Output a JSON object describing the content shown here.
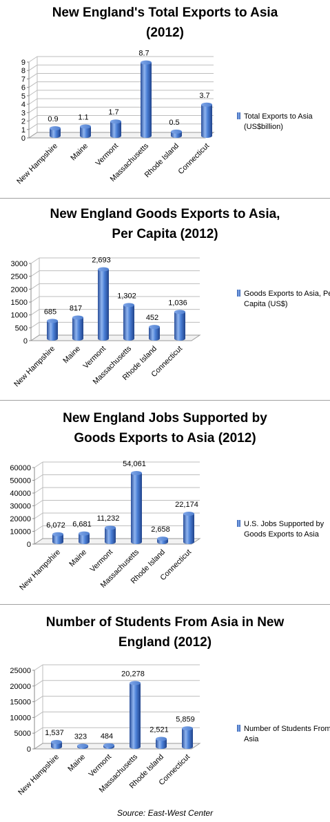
{
  "source": "Source: East-West Center",
  "chart_data": [
    {
      "type": "bar",
      "title_lines": [
        "New England's Total Exports to Asia",
        "(2012)"
      ],
      "categories": [
        "New Hampshire",
        "Maine",
        "Vermont",
        "Massachusetts",
        "Rhode Island",
        "Connecticut"
      ],
      "values": [
        0.9,
        1.1,
        1.7,
        8.7,
        0.5,
        3.7
      ],
      "value_labels": [
        "0.9",
        "1.1",
        "1.7",
        "8.7",
        "0.5",
        "3.7"
      ],
      "yticks": [
        "0",
        "1",
        "2",
        "3",
        "4",
        "5",
        "6",
        "7",
        "8",
        "9"
      ],
      "ylim": [
        0,
        9
      ],
      "legend_lines": [
        "Total Exports to Asia",
        "(US$billion)"
      ],
      "legend_position": "right",
      "grid": true
    },
    {
      "type": "bar",
      "title_lines": [
        "New England Goods Exports to Asia,",
        "Per Capita (2012)"
      ],
      "categories": [
        "New Hampshire",
        "Maine",
        "Vermont",
        "Massachusetts",
        "Rhode Island",
        "Connecticut"
      ],
      "values": [
        685,
        817,
        2693,
        1302,
        452,
        1036
      ],
      "value_labels": [
        "685",
        "817",
        "2,693",
        "1,302",
        "452",
        "1,036"
      ],
      "yticks": [
        "0",
        "500",
        "1000",
        "1500",
        "2000",
        "2500",
        "3000"
      ],
      "ylim": [
        0,
        3000
      ],
      "legend_lines": [
        "Goods Exports to Asia, Per",
        "Capita (US$)"
      ],
      "legend_position": "right",
      "grid": true
    },
    {
      "type": "bar",
      "title_lines": [
        "New England Jobs Supported by",
        "Goods Exports to Asia (2012)"
      ],
      "categories": [
        "New Hampshire",
        "Maine",
        "Vermont",
        "Massachusetts",
        "Rhode Island",
        "Connecticut"
      ],
      "values": [
        6072,
        6681,
        11232,
        54061,
        2658,
        22174
      ],
      "value_labels": [
        "6,072",
        "6,681",
        "11,232",
        "54,061",
        "2,658",
        "22,174"
      ],
      "yticks": [
        "0",
        "10000",
        "20000",
        "30000",
        "40000",
        "50000",
        "60000"
      ],
      "ylim": [
        0,
        60000
      ],
      "legend_lines": [
        "U.S. Jobs Supported by",
        "Goods Exports to Asia"
      ],
      "legend_position": "right",
      "grid": true
    },
    {
      "type": "bar",
      "title_lines": [
        "Number of Students From Asia in New",
        "England (2012)"
      ],
      "categories": [
        "New Hampshire",
        "Maine",
        "Vermont",
        "Massachusetts",
        "Rhode Island",
        "Connecticut"
      ],
      "values": [
        1537,
        323,
        484,
        20278,
        2521,
        5859
      ],
      "value_labels": [
        "1,537",
        "323",
        "484",
        "20,278",
        "2,521",
        "5,859"
      ],
      "yticks": [
        "0",
        "5000",
        "10000",
        "15000",
        "20000",
        "25000"
      ],
      "ylim": [
        0,
        25000
      ],
      "legend_lines": [
        "Number of Students From",
        "Asia"
      ],
      "legend_position": "right",
      "grid": true
    }
  ]
}
